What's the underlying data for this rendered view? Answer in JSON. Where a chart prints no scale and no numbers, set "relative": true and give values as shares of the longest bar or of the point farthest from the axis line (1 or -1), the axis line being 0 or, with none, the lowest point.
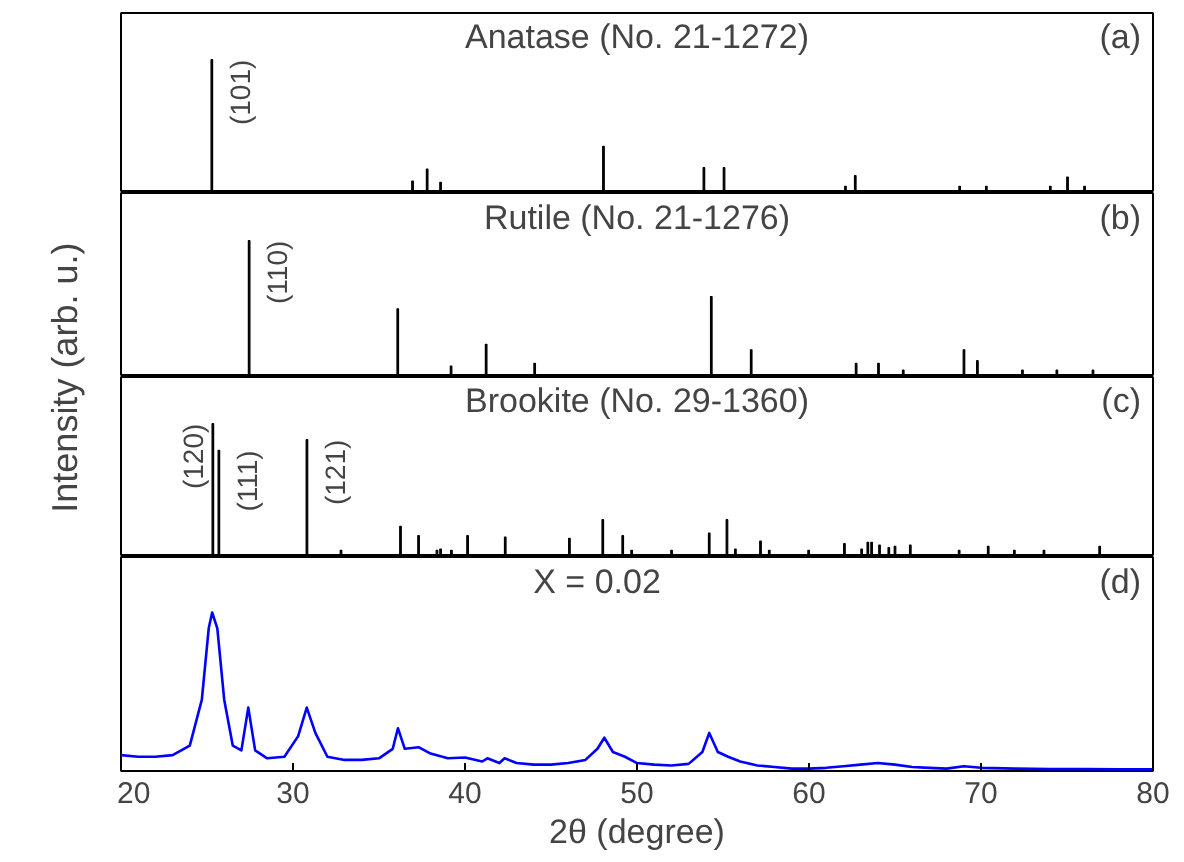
{
  "chart_data": [
    {
      "type": "bar",
      "title": "Anatase (No. 21-1272)",
      "ylabel": "Intensity (arb. u.)",
      "relative": true,
      "xlim": [
        20,
        80
      ],
      "xticks": [
        20,
        30,
        40,
        50,
        60,
        70,
        80
      ],
      "tick_labels": false,
      "x": [
        25.28,
        36.95,
        37.8,
        38.58,
        48.05,
        53.89,
        55.06,
        62.12,
        62.69,
        68.76,
        70.31,
        74.03,
        75.03,
        76.02
      ],
      "values": [
        1.0,
        0.09,
        0.18,
        0.08,
        0.35,
        0.19,
        0.19,
        0.05,
        0.13,
        0.05,
        0.05,
        0.05,
        0.12,
        0.05
      ],
      "color": "#000000",
      "annotations": [
        "(a)",
        {
          "text": "(101)",
          "x": 25.28,
          "y": 1.0
        }
      ]
    },
    {
      "type": "bar",
      "title": "Rutile (No. 21-1276)",
      "relative": true,
      "xlim": [
        20,
        80
      ],
      "xticks": [
        20,
        30,
        40,
        50,
        60,
        70,
        80
      ],
      "tick_labels": false,
      "x": [
        27.45,
        36.09,
        39.19,
        41.23,
        44.05,
        54.32,
        56.64,
        62.74,
        64.04,
        65.48,
        69.01,
        69.79,
        72.41,
        74.41,
        76.51
      ],
      "values": [
        1.0,
        0.5,
        0.08,
        0.24,
        0.1,
        0.59,
        0.2,
        0.1,
        0.1,
        0.05,
        0.2,
        0.12,
        0.05,
        0.05,
        0.05
      ],
      "color": "#000000",
      "annotations": [
        "(b)",
        {
          "text": "(110)",
          "x": 27.45,
          "y": 1.0
        }
      ]
    },
    {
      "type": "bar",
      "title": "Brookite (No. 29-1360)",
      "relative": true,
      "xlim": [
        20,
        80
      ],
      "xticks": [
        20,
        30,
        40,
        50,
        60,
        70,
        80
      ],
      "tick_labels": false,
      "x": [
        25.34,
        25.69,
        30.81,
        32.79,
        36.25,
        37.3,
        38.37,
        38.58,
        39.21,
        40.15,
        42.34,
        46.07,
        48.01,
        49.17,
        49.69,
        52.01,
        54.2,
        55.23,
        55.72,
        57.18,
        57.69,
        59.98,
        62.06,
        63.06,
        63.42,
        63.64,
        64.1,
        64.64,
        65.0,
        65.89,
        68.73,
        70.42,
        71.94,
        73.66,
        76.9
      ],
      "values": [
        1.0,
        0.8,
        0.88,
        0.05,
        0.23,
        0.16,
        0.05,
        0.06,
        0.05,
        0.16,
        0.15,
        0.14,
        0.28,
        0.16,
        0.05,
        0.05,
        0.18,
        0.28,
        0.06,
        0.12,
        0.05,
        0.05,
        0.1,
        0.06,
        0.11,
        0.11,
        0.09,
        0.07,
        0.08,
        0.09,
        0.05,
        0.08,
        0.05,
        0.05,
        0.08
      ],
      "color": "#000000",
      "annotations": [
        "(c)",
        {
          "text": "(120)",
          "x": 25.34,
          "y": 1.0
        },
        {
          "text": "(111)",
          "x": 25.69,
          "y": 0.8
        },
        {
          "text": "(121)",
          "x": 30.81,
          "y": 0.88
        }
      ]
    },
    {
      "type": "line",
      "title": "X = 0.02",
      "xlabel": "2θ (degree)",
      "relative": true,
      "xlim": [
        20,
        80
      ],
      "xticks": [
        20,
        30,
        40,
        50,
        60,
        70,
        80
      ],
      "tick_labels": "x",
      "x": [
        20,
        21,
        22,
        23,
        24,
        24.7,
        25.1,
        25.3,
        25.6,
        26.0,
        26.5,
        27.0,
        27.4,
        27.8,
        28.5,
        29.5,
        30.3,
        30.8,
        31.3,
        32,
        33,
        34,
        35,
        35.8,
        36.1,
        36.5,
        37.3,
        38,
        39,
        40,
        41,
        41.3,
        42,
        42.3,
        43,
        44,
        45,
        46,
        47,
        47.7,
        48.1,
        48.6,
        49.3,
        50,
        51,
        52,
        53,
        53.8,
        54.2,
        54.7,
        55.3,
        56,
        57,
        58,
        59,
        60,
        61,
        62,
        63,
        64,
        65,
        66,
        67,
        68,
        69,
        70,
        72,
        74,
        76,
        78,
        80
      ],
      "values": [
        0.1,
        0.09,
        0.09,
        0.1,
        0.16,
        0.45,
        0.9,
        1.0,
        0.9,
        0.45,
        0.16,
        0.13,
        0.4,
        0.13,
        0.08,
        0.09,
        0.22,
        0.4,
        0.24,
        0.09,
        0.07,
        0.07,
        0.08,
        0.14,
        0.27,
        0.14,
        0.15,
        0.11,
        0.08,
        0.085,
        0.06,
        0.08,
        0.05,
        0.08,
        0.05,
        0.04,
        0.04,
        0.05,
        0.07,
        0.14,
        0.21,
        0.12,
        0.09,
        0.05,
        0.04,
        0.035,
        0.045,
        0.12,
        0.24,
        0.12,
        0.09,
        0.06,
        0.035,
        0.025,
        0.015,
        0.015,
        0.02,
        0.03,
        0.04,
        0.05,
        0.04,
        0.025,
        0.02,
        0.015,
        0.03,
        0.02,
        0.015,
        0.012,
        0.012,
        0.01,
        0.01
      ],
      "color": "#0000ff",
      "annotations": [
        "(d)"
      ]
    }
  ]
}
